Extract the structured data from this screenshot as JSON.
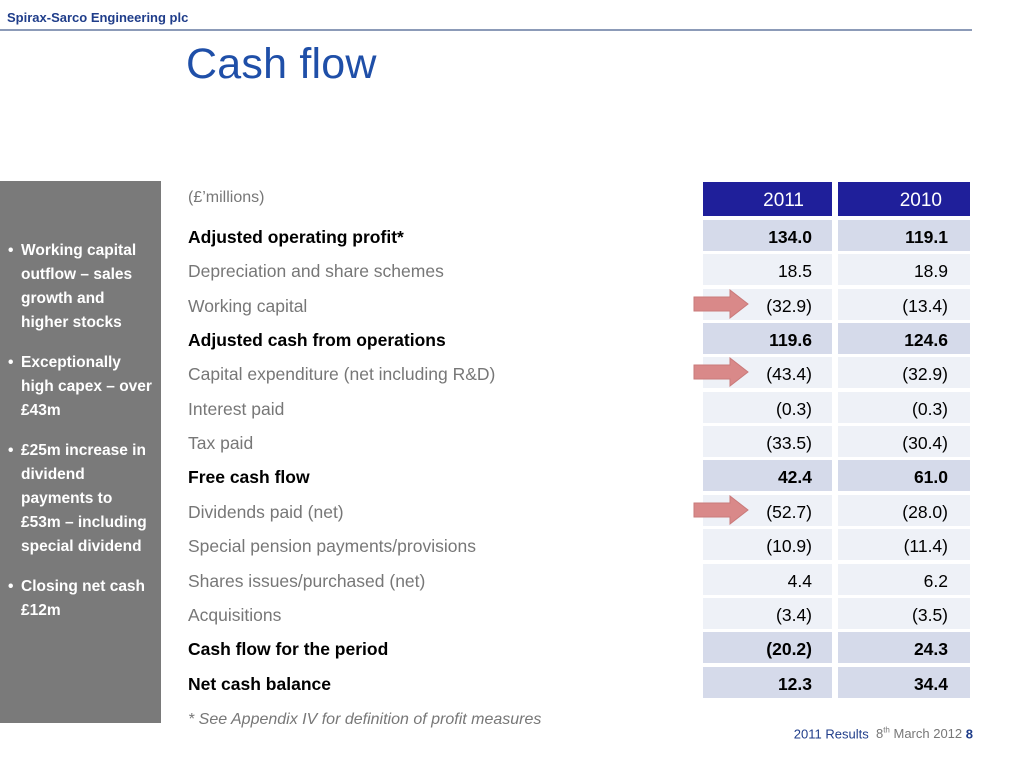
{
  "header": {
    "company": "Spirax-Sarco Engineering plc",
    "title": "Cash flow"
  },
  "sidebar": {
    "bullet_symbol": "•",
    "bullets": [
      "Working capital outflow – sales growth and higher stocks",
      "Exceptionally high capex – over £43m",
      "£25m increase in dividend payments to £53m – including special dividend",
      "Closing net cash £12m"
    ]
  },
  "table": {
    "units": "(£’millions)",
    "columns": [
      "2011",
      "2010"
    ],
    "rows": [
      {
        "label": "Adjusted operating profit*",
        "v2011": "134.0",
        "v2010": "119.1",
        "bold": true
      },
      {
        "label": "Depreciation and share schemes",
        "v2011": "18.5",
        "v2010": "18.9",
        "bold": false
      },
      {
        "label": "Working capital",
        "v2011": "(32.9)",
        "v2010": "(13.4)",
        "bold": false,
        "arrow": true
      },
      {
        "label": "Adjusted cash from operations",
        "v2011": "119.6",
        "v2010": "124.6",
        "bold": true
      },
      {
        "label": "Capital expenditure (net including R&D)",
        "v2011": "(43.4)",
        "v2010": "(32.9)",
        "bold": false,
        "arrow": true
      },
      {
        "label": "Interest paid",
        "v2011": "(0.3)",
        "v2010": "(0.3)",
        "bold": false
      },
      {
        "label": "Tax paid",
        "v2011": "(33.5)",
        "v2010": "(30.4)",
        "bold": false
      },
      {
        "label": "Free cash flow",
        "v2011": "42.4",
        "v2010": "61.0",
        "bold": true
      },
      {
        "label": "Dividends paid (net)",
        "v2011": "(52.7)",
        "v2010": "(28.0)",
        "bold": false,
        "arrow": true
      },
      {
        "label": "Special pension payments/provisions",
        "v2011": "(10.9)",
        "v2010": "(11.4)",
        "bold": false
      },
      {
        "label": "Shares issues/purchased (net)",
        "v2011": "4.4",
        "v2010": "6.2",
        "bold": false
      },
      {
        "label": "Acquisitions",
        "v2011": "(3.4)",
        "v2010": "(3.5)",
        "bold": false
      },
      {
        "label": "Cash flow for the period",
        "v2011": "(20.2)",
        "v2010": "24.3",
        "bold": true
      },
      {
        "label": "Net cash balance",
        "v2011": "12.3",
        "v2010": "34.4",
        "bold": true
      }
    ],
    "footnote": "* See Appendix IV for definition of profit measures"
  },
  "footer": {
    "results": "2011 Results",
    "date_day": "8",
    "date_sup": "th",
    "date_rest": "March 2012",
    "page": "8"
  },
  "colors": {
    "header_blue": "#1f1f9a",
    "title_blue": "#1f4fa8",
    "arrow_pink": "#d98989",
    "sidebar_grey": "#7a7a7a"
  }
}
